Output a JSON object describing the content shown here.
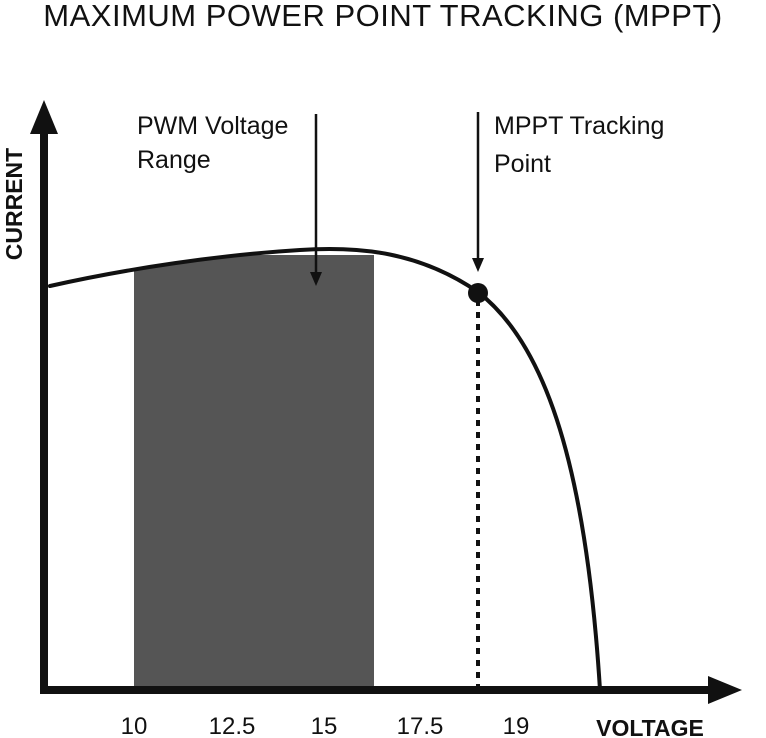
{
  "title": "MAXIMUM POWER POINT TRACKING (MPPT)",
  "axes": {
    "y_label": "CURRENT",
    "x_label": "VOLTAGE",
    "x_ticks": [
      "10",
      "12.5",
      "15",
      "17.5",
      "19"
    ]
  },
  "annotations": {
    "pwm_line1": "PWM Voltage",
    "pwm_line2": "Range",
    "mppt_line1": "MPPT Tracking",
    "mppt_line2": "Point"
  },
  "colors": {
    "ink": "#111111",
    "pwm_range_fill": "#555555",
    "background": "#ffffff"
  },
  "icons": {
    "y_axis_arrow": "arrow-up-icon",
    "x_axis_arrow": "arrow-right-icon",
    "mppt_point": "filled-circle-icon"
  }
}
